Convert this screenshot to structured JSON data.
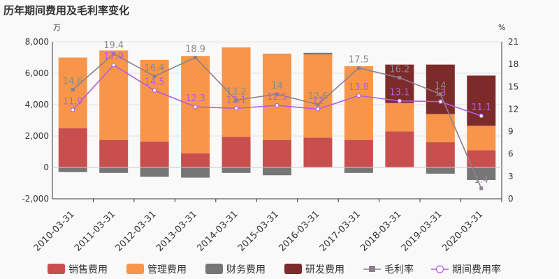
{
  "chart_data": {
    "type": "bar",
    "title": "历年期间费用及毛利率变化",
    "left_unit": "万",
    "right_unit": "%",
    "categories": [
      "2010-03-31",
      "2011-03-31",
      "2012-03-31",
      "2013-03-31",
      "2014-03-31",
      "2015-03-31",
      "2016-03-31",
      "2017-03-31",
      "2018-03-31",
      "2019-03-31",
      "2020-03-31"
    ],
    "ylim_left": [
      -2000,
      8000
    ],
    "yticks_left": [
      "-2,000",
      "0",
      "2,000",
      "4,000",
      "6,000",
      "8,000"
    ],
    "ylim_right": [
      0,
      21
    ],
    "yticks_right": [
      "0",
      "3",
      "6",
      "9",
      "12",
      "15",
      "18",
      "21"
    ],
    "stacked_series": [
      {
        "name": "销售费用",
        "color": "#c94f4f",
        "values": [
          2500,
          1750,
          1650,
          900,
          1950,
          1750,
          1900,
          1750,
          2300,
          1600,
          1100
        ]
      },
      {
        "name": "管理费用",
        "color": "#f7964a",
        "values": [
          4500,
          5700,
          5200,
          6200,
          5700,
          5500,
          5300,
          4700,
          1800,
          1800,
          1550
        ]
      },
      {
        "name": "财务费用",
        "color": "#767676",
        "values": [
          -300,
          -350,
          -600,
          -650,
          -350,
          -500,
          100,
          -350,
          0,
          -400,
          -800
        ]
      },
      {
        "name": "研发费用",
        "color": "#7d2a2a",
        "values": [
          0,
          0,
          0,
          0,
          0,
          0,
          0,
          0,
          2450,
          3150,
          3200
        ]
      }
    ],
    "line_series": [
      {
        "name": "毛利率",
        "color": "#8e7f8e",
        "axis": "right",
        "values": [
          14.6,
          19.4,
          16.4,
          18.9,
          13.2,
          14,
          12.6,
          17.5,
          16.2,
          14,
          1.4
        ],
        "labels": [
          "14.6",
          "19.4",
          "16.4",
          "18.9",
          "13.2",
          "14",
          "12.6",
          "17.5",
          "16.2",
          "14",
          "1.4"
        ]
      },
      {
        "name": "期间费用率",
        "color": "#b15fe0",
        "axis": "right",
        "values": [
          11.9,
          17.9,
          14.5,
          12.3,
          12.1,
          12.5,
          12,
          13.8,
          13.1,
          13,
          11.1
        ],
        "labels": [
          "11.9",
          "17.9",
          "14.5",
          "12.3",
          "12.1",
          "12.5",
          "12",
          "13.8",
          "13.1",
          "13",
          "11.1"
        ]
      }
    ],
    "legend": [
      "销售费用",
      "管理费用",
      "财务费用",
      "研发费用",
      "毛利率",
      "期间费用率"
    ],
    "legend_position": "bottom",
    "grid": true
  }
}
